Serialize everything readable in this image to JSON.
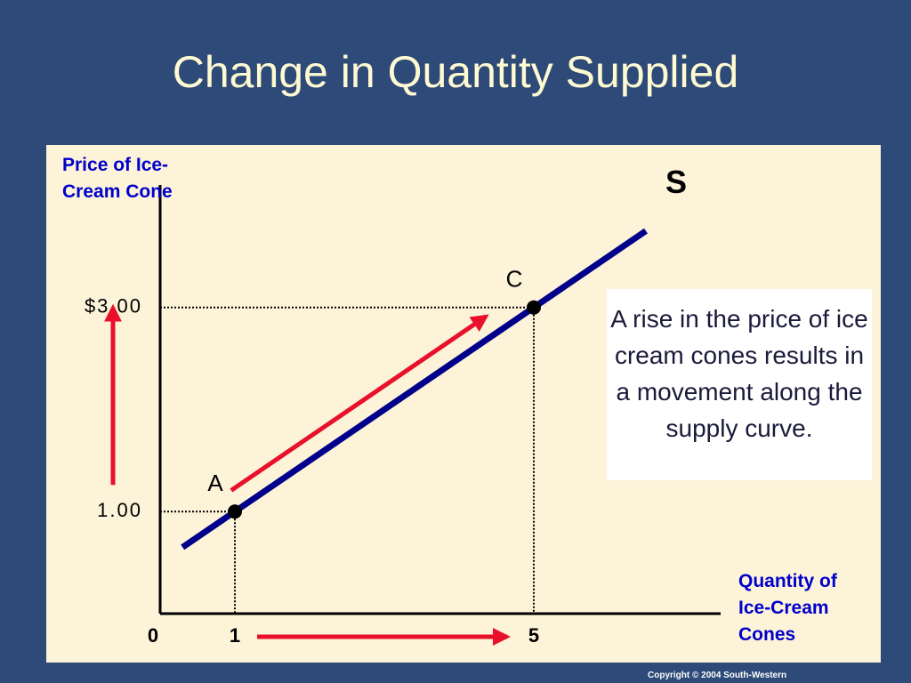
{
  "chart_data": {
    "type": "line",
    "title": "Change in Quantity Supplied",
    "y_label": "Price of Ice-Cream Cone",
    "x_label": "Quantity of Ice-Cream Cones",
    "series": [
      {
        "name": "S",
        "color": "#00008b",
        "x": [
          0.3,
          6.5
        ],
        "values": [
          0.65,
          3.75
        ]
      }
    ],
    "points": [
      {
        "label": "A",
        "x": 1,
        "y": 1
      },
      {
        "label": "C",
        "x": 5,
        "y": 3
      }
    ],
    "xlim": [
      0,
      7.5
    ],
    "ylim": [
      0,
      4.2
    ],
    "xticks": [
      0,
      1,
      5
    ],
    "yticks": [
      {
        "value": 1,
        "label": "1.00"
      },
      {
        "value": 3,
        "label": "$3.00"
      }
    ],
    "grid": false,
    "annotation": "A rise in the price of ice cream cones results in a movement along the supply curve.",
    "copyright": "Copyright © 2004  South-Western"
  }
}
